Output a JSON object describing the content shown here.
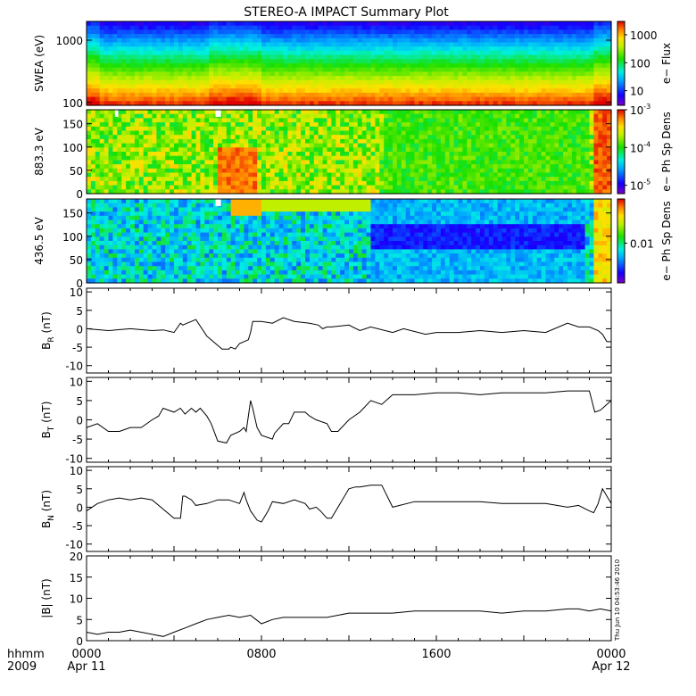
{
  "title": "STEREO-A IMPACT Summary Plot",
  "footer": {
    "unit_label": "hhmm",
    "year": "2009",
    "start_date": "Apr 11",
    "end_date": "Apr 12",
    "x_ticks": [
      "0000",
      "0800",
      "1600",
      "0000"
    ],
    "timestamp": "Thu Jun 10 04:53:46 2010"
  },
  "chart_data": [
    {
      "type": "heatmap",
      "ylabel": "SWEA (eV)",
      "yscale": "log",
      "ylim": [
        90,
        2000
      ],
      "y_ticks": [
        {
          "value": 100,
          "label": "100"
        },
        {
          "value": 1000,
          "label": "1000"
        }
      ],
      "colorbar": {
        "label": "e− Flux",
        "scale": "log",
        "range": [
          3,
          3000
        ],
        "ticks": [
          {
            "value": 1000,
            "label": "1000"
          },
          {
            "value": 100,
            "label": "100"
          },
          {
            "value": 10,
            "label": "10"
          }
        ]
      }
    },
    {
      "type": "heatmap",
      "ylabel": "883.3 eV",
      "ylim": [
        0,
        180
      ],
      "y_ticks": [
        {
          "value": 0,
          "label": "0"
        },
        {
          "value": 50,
          "label": "50"
        },
        {
          "value": 100,
          "label": "100"
        },
        {
          "value": 150,
          "label": "150"
        }
      ],
      "colorbar": {
        "label": "e− Ph Sp Dens",
        "scale": "log",
        "range": [
          6e-06,
          0.001
        ],
        "ticks": [
          {
            "value": 0.001,
            "label": "10",
            "exp": "-3"
          },
          {
            "value": 0.0001,
            "label": "10",
            "exp": "-4"
          },
          {
            "value": 1e-05,
            "label": "10",
            "exp": "-5"
          }
        ]
      }
    },
    {
      "type": "heatmap",
      "ylabel": "436.5 eV",
      "ylim": [
        0,
        180
      ],
      "y_ticks": [
        {
          "value": 0,
          "label": "0"
        },
        {
          "value": 50,
          "label": "50"
        },
        {
          "value": 100,
          "label": "100"
        },
        {
          "value": 150,
          "label": "150"
        }
      ],
      "colorbar": {
        "label": "e− Ph Sp Dens",
        "scale": "log",
        "range": [
          0.002,
          0.06
        ],
        "ticks": [
          {
            "value": 0.01,
            "label": "0.01"
          }
        ]
      }
    },
    {
      "type": "line",
      "ylabel": "B",
      "ylabel_sub": "R",
      "ylabel_unit": " (nT)",
      "ylim": [
        -12,
        11
      ],
      "y_ticks": [
        -10,
        -5,
        0,
        5,
        10
      ],
      "x": [
        0,
        2,
        4,
        6,
        7,
        8,
        8.6,
        8.8,
        9.2,
        9.6,
        10,
        11,
        12.4,
        13,
        13.2,
        13.6,
        14,
        14.8,
        15,
        15.2,
        16,
        17,
        18,
        19,
        20.4,
        21.2,
        21.6,
        22,
        22.4,
        24,
        25,
        26,
        28,
        29,
        31,
        32,
        34,
        36,
        38,
        40,
        42,
        44,
        45,
        46,
        46.8,
        47.2,
        47.6,
        48
      ],
      "y": [
        0,
        -0.5,
        0,
        -0.5,
        -0.3,
        -1,
        1.5,
        1,
        1.5,
        2,
        2.5,
        -2,
        -5.5,
        -5.5,
        -5,
        -5.5,
        -4,
        -3,
        -1,
        2,
        2,
        1.5,
        3,
        2,
        1.5,
        1,
        0,
        0.5,
        0.5,
        1,
        -0.5,
        0.5,
        -1,
        0,
        -1.5,
        -1,
        -1,
        -0.5,
        -1,
        -0.5,
        -1,
        1.5,
        0.5,
        0.5,
        -0.5,
        -1.5,
        -3.5,
        -3.5
      ]
    },
    {
      "type": "line",
      "ylabel": "B",
      "ylabel_sub": "T",
      "ylabel_unit": " (nT)",
      "ylim": [
        -11,
        11
      ],
      "y_ticks": [
        -10,
        -5,
        0,
        5,
        10
      ],
      "x": [
        0,
        1,
        2,
        3,
        4,
        5,
        6,
        6.6,
        7,
        8,
        8.6,
        9,
        9.6,
        10,
        10.4,
        11,
        11.4,
        12,
        12.8,
        13.2,
        14,
        14.4,
        14.6,
        15,
        15.2,
        15.6,
        16,
        17,
        17.2,
        18,
        18.5,
        19,
        20,
        20.4,
        21,
        22,
        22.4,
        23,
        24,
        25,
        26,
        27,
        28,
        30,
        32,
        34,
        36,
        38,
        40,
        42,
        44,
        45,
        46,
        46.5,
        47,
        48
      ],
      "y": [
        -2,
        -1,
        -3,
        -3,
        -2,
        -2,
        0,
        1,
        3,
        2,
        3,
        1.5,
        3,
        2,
        3,
        1,
        -1,
        -5.5,
        -6,
        -4,
        -3,
        -2,
        -3,
        5,
        3,
        -2,
        -4,
        -5,
        -3.5,
        -1,
        -1,
        2,
        2,
        1,
        0,
        -1,
        -3,
        -3,
        0,
        2,
        5,
        4,
        6.5,
        6.5,
        7,
        7,
        6.5,
        7,
        7,
        7,
        7.5,
        7.5,
        7.5,
        2,
        2.5,
        5
      ]
    },
    {
      "type": "line",
      "ylabel": "B",
      "ylabel_sub": "N",
      "ylabel_unit": " (nT)",
      "ylim": [
        -12,
        11
      ],
      "y_ticks": [
        -10,
        -5,
        0,
        5,
        10
      ],
      "x": [
        0,
        1,
        2,
        3,
        4,
        5,
        6,
        8,
        8.6,
        8.8,
        9,
        9.6,
        10,
        11,
        12,
        13,
        14,
        14.4,
        14.6,
        15,
        15.6,
        16,
        16.6,
        17,
        18,
        19,
        20,
        20.4,
        21,
        21.4,
        22,
        22.4,
        23,
        24,
        24.6,
        25,
        26,
        27,
        28,
        30,
        32,
        34,
        35,
        36,
        38,
        40,
        42,
        44,
        45,
        46,
        46.4,
        46.8,
        47.2,
        48
      ],
      "y": [
        -1,
        1,
        2,
        2.5,
        2,
        2.5,
        2,
        -3,
        -3,
        3,
        3,
        2,
        0.5,
        1,
        2,
        2,
        1,
        4,
        2,
        -1,
        -3.5,
        -4,
        -1,
        1.5,
        1,
        2,
        1,
        -0.5,
        0,
        -1,
        -3,
        -3,
        0,
        5,
        5.5,
        5.5,
        6,
        6,
        0,
        1.5,
        1.5,
        1.5,
        1.5,
        1.5,
        1,
        1,
        1,
        0,
        0.5,
        -1,
        -1.5,
        1,
        5,
        1
      ]
    },
    {
      "type": "line",
      "ylabel": "|B| (nT)",
      "ylim": [
        0,
        20
      ],
      "y_ticks": [
        0,
        5,
        10,
        15,
        20
      ],
      "x": [
        0,
        1,
        2,
        3,
        4,
        5,
        6,
        7,
        8,
        9,
        10,
        11,
        12,
        13,
        14,
        15,
        15.5,
        16,
        17,
        18,
        19,
        20,
        22,
        24,
        26,
        28,
        30,
        32,
        34,
        36,
        38,
        40,
        42,
        44,
        45,
        46,
        47,
        48
      ],
      "y": [
        2,
        1.5,
        2,
        2,
        2.5,
        2,
        1.5,
        1,
        2,
        3,
        4,
        5,
        5.5,
        6,
        5.5,
        6,
        5,
        4,
        5,
        5.5,
        5.5,
        5.5,
        5.5,
        6.5,
        6.5,
        6.5,
        7,
        7,
        7,
        7,
        6.5,
        7,
        7,
        7.5,
        7.5,
        7,
        7.5,
        7
      ]
    }
  ]
}
